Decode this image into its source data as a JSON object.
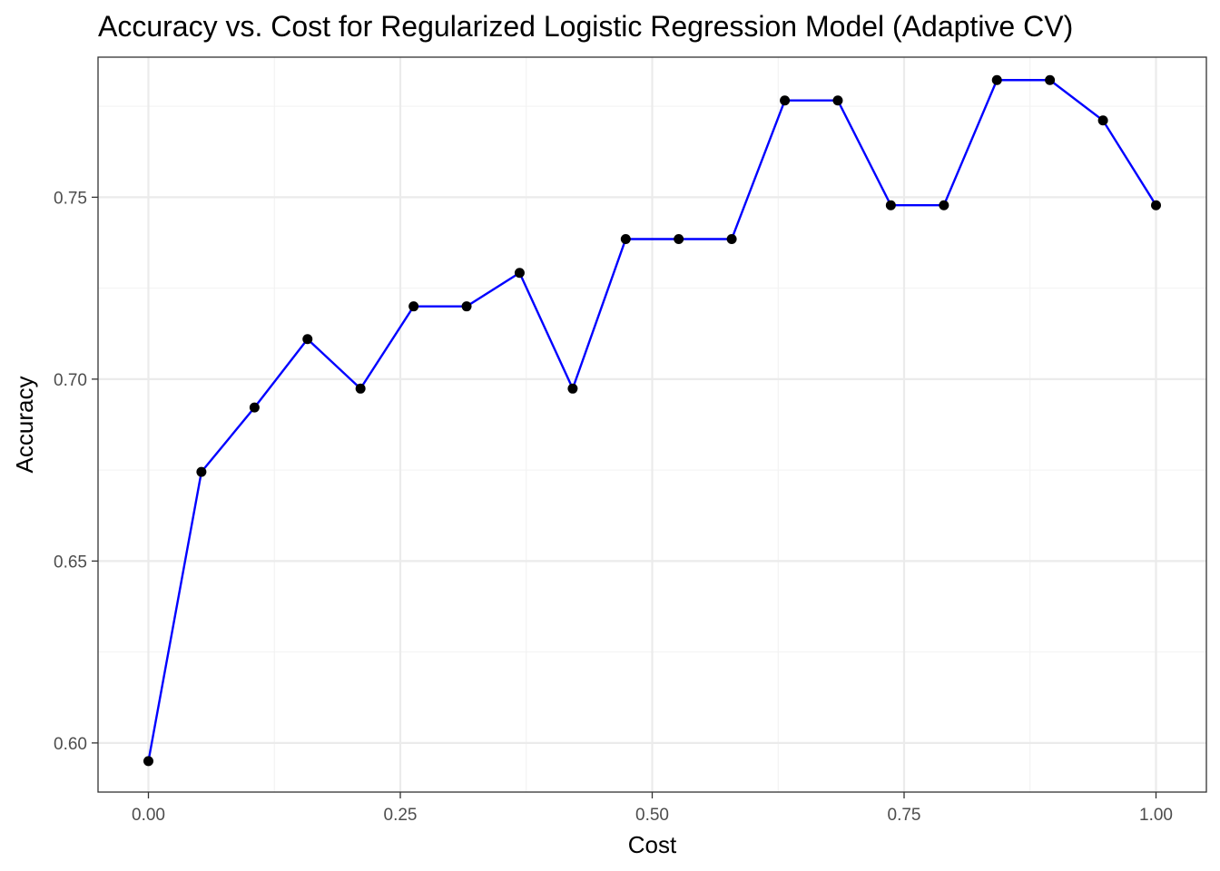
{
  "chart_data": {
    "type": "line",
    "title": "Accuracy vs. Cost for Regularized Logistic Regression Model (Adaptive CV)",
    "xlabel": "Cost",
    "ylabel": "Accuracy",
    "xlim": [
      -0.05,
      1.05
    ],
    "ylim": [
      0.5865,
      0.7885
    ],
    "x_ticks": [
      0.0,
      0.25,
      0.5,
      0.75,
      1.0
    ],
    "x_tick_labels": [
      "0.00",
      "0.25",
      "0.50",
      "0.75",
      "1.00"
    ],
    "y_ticks": [
      0.6,
      0.65,
      0.7,
      0.75
    ],
    "y_tick_labels": [
      "0.60",
      "0.65",
      "0.70",
      "0.75"
    ],
    "grid": true,
    "line_color": "#0000ff",
    "point_color": "#000000",
    "series": [
      {
        "x": [
          0.0,
          0.0526,
          0.1053,
          0.1579,
          0.2105,
          0.2632,
          0.3158,
          0.3684,
          0.4211,
          0.4737,
          0.5263,
          0.5789,
          0.6316,
          0.6842,
          0.7368,
          0.7895,
          0.8421,
          0.8947,
          0.9474,
          1.0
        ],
        "y": [
          0.595,
          0.6745,
          0.6922,
          0.711,
          0.6974,
          0.72,
          0.72,
          0.7292,
          0.6974,
          0.7385,
          0.7385,
          0.7385,
          0.7766,
          0.7766,
          0.7478,
          0.7478,
          0.7822,
          0.7822,
          0.7711,
          0.7478
        ]
      }
    ]
  }
}
